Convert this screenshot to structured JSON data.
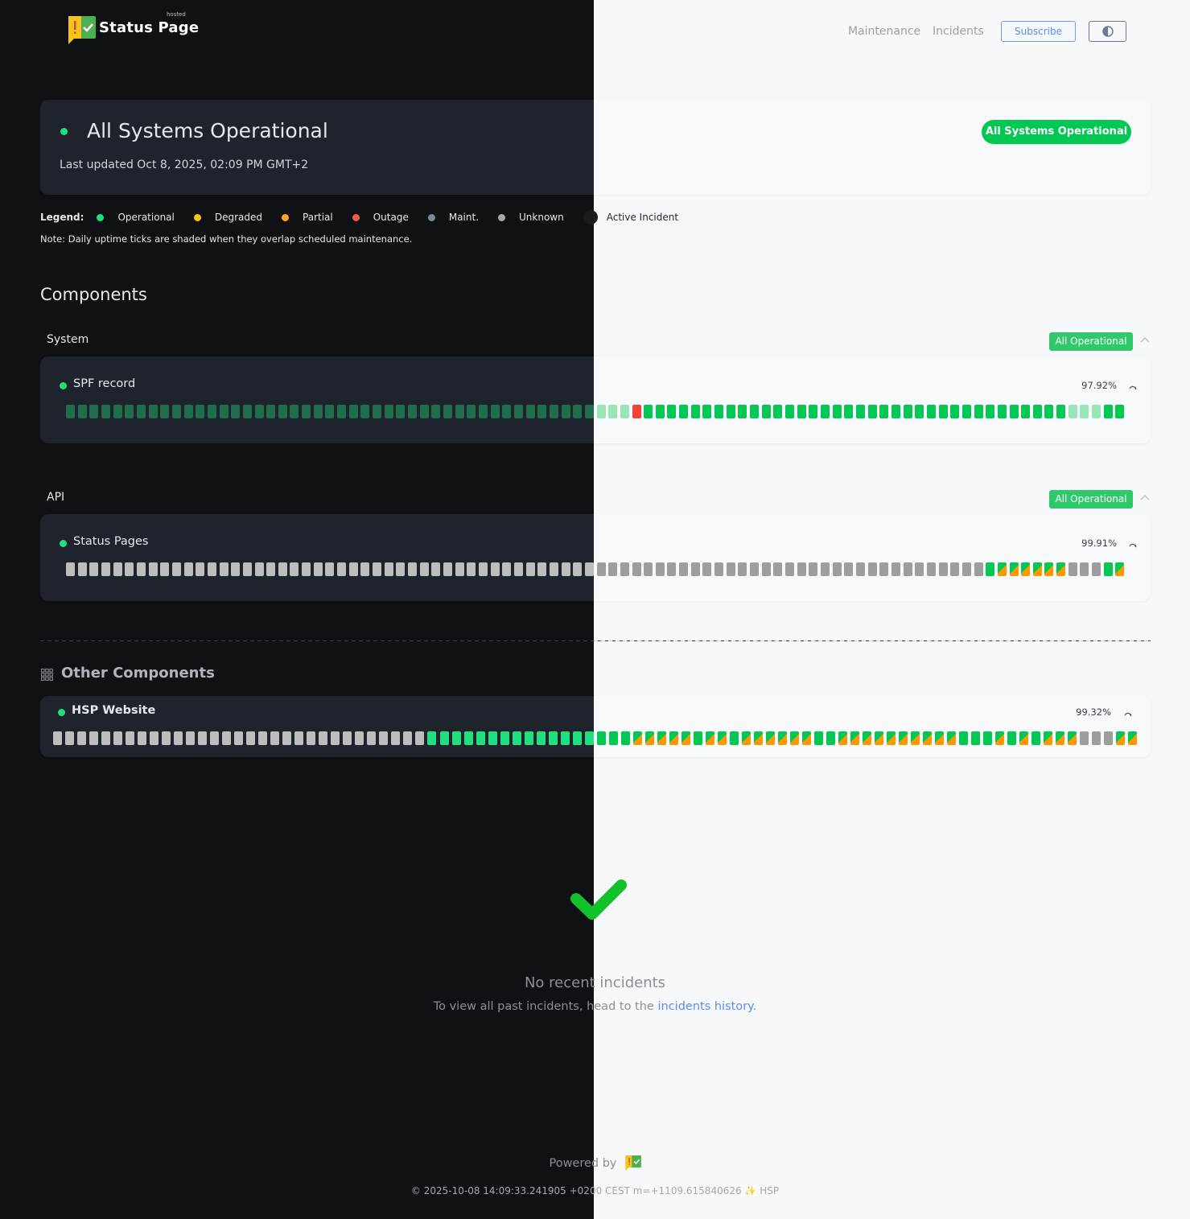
{
  "header": {
    "brand": "Status Page",
    "brand_tag": "hosted",
    "nav": [
      "Maintenance",
      "Incidents"
    ],
    "subscribe_label": "Subscribe",
    "theme_toggle_icon": "half-circle-contrast-icon"
  },
  "banner": {
    "title": "All Systems Operational",
    "last_updated": "Last updated Oct 8, 2025, 02:09 PM GMT+2",
    "status_pill": "All Systems Operational"
  },
  "legend": {
    "label": "Legend:",
    "items": [
      {
        "label": "Operational",
        "color": "#1ee07f"
      },
      {
        "label": "Degraded",
        "color": "#f5c518"
      },
      {
        "label": "Partial",
        "color": "#ffa033"
      },
      {
        "label": "Outage",
        "color": "#f55a4e"
      },
      {
        "label": "Maint.",
        "color": "#7b8a97"
      },
      {
        "label": "Unknown",
        "color": "#a8a8a8"
      },
      {
        "label": "Active Incident",
        "color": "#1c1c1c"
      }
    ],
    "note": "Note: Daily uptime ticks are shaded when they overlap scheduled maintenance."
  },
  "components_title": "Components",
  "groups": [
    {
      "name": "System",
      "badge": "All Operational",
      "component": {
        "name": "SPF record",
        "uptime": "97.92%",
        "uptime_runs": [
          [
            "operational",
            45
          ],
          [
            "maintenance-shaded",
            3
          ],
          [
            "outage",
            1
          ],
          [
            "operational",
            36
          ],
          [
            "maintenance-shaded",
            3
          ],
          [
            "operational",
            2
          ]
        ]
      }
    },
    {
      "name": "API",
      "badge": "All Operational",
      "component": {
        "name": "Status Pages",
        "uptime": "99.91%",
        "uptime_runs": [
          [
            "unknown",
            78
          ],
          [
            "operational",
            1
          ],
          [
            "partial",
            6
          ],
          [
            "unknown",
            3
          ],
          [
            "operational",
            1
          ],
          [
            "partial",
            1
          ]
        ]
      }
    }
  ],
  "other": {
    "title": "Other Components",
    "component": {
      "name": "HSP Website",
      "uptime": "99.32%",
      "uptime_runs": [
        [
          "unknown",
          31
        ],
        [
          "operational",
          17
        ],
        [
          "partial",
          5
        ],
        [
          "operational",
          1
        ],
        [
          "partial",
          2
        ],
        [
          "operational",
          1
        ],
        [
          "partial",
          6
        ],
        [
          "operational",
          2
        ],
        [
          "partial",
          4
        ],
        [
          "partial",
          6
        ],
        [
          "operational",
          3
        ],
        [
          "partial",
          1
        ],
        [
          "operational",
          1
        ],
        [
          "partial",
          1
        ],
        [
          "operational",
          1
        ],
        [
          "partial",
          3
        ],
        [
          "unknown",
          3
        ],
        [
          "partial",
          2
        ]
      ]
    }
  },
  "incidents": {
    "title": "No recent incidents",
    "text": "To view all past incidents, head to the ",
    "link": "incidents history",
    "suffix": "."
  },
  "footer": {
    "powered_by": "Powered by",
    "build": "© 2025-10-08 14:09:33.241905 +0200 CEST m=+1109.615840626 ✨ HSP"
  },
  "colors": {
    "accent": "#00c853",
    "link": "#5b8def",
    "outage": "#f44336",
    "partial": "#ff9800",
    "unknown": "#9e9e9e"
  }
}
